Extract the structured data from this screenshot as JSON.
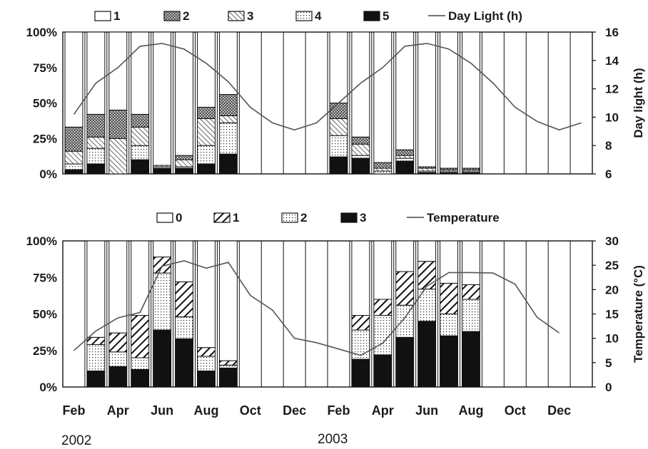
{
  "chart_data": [
    {
      "type": "bar",
      "stacked": true,
      "secondary_line": true,
      "months": [
        "Feb",
        "Mar",
        "Apr",
        "May",
        "Jun",
        "Jul",
        "Aug",
        "Sep",
        "Oct",
        "Nov",
        "Dec",
        "Jan",
        "Feb",
        "Mar",
        "Apr",
        "May",
        "Jun",
        "Jul",
        "Aug",
        "Sep",
        "Oct",
        "Nov",
        "Dec",
        "Jan"
      ],
      "ylim": [
        0,
        100
      ],
      "yticks": [
        "0%",
        "25%",
        "50%",
        "75%",
        "100%"
      ],
      "y2lim": [
        6,
        16
      ],
      "y2ticks": [
        "6",
        "8",
        "10",
        "12",
        "14",
        "16"
      ],
      "y2label": "Day light (h)",
      "legend_order": [
        "1",
        "2",
        "3",
        "4",
        "5",
        "Day Light (h)"
      ],
      "series": [
        {
          "name": "5",
          "pattern": "solid",
          "values": [
            3,
            7,
            0,
            10,
            4,
            4,
            7,
            14,
            null,
            null,
            null,
            null,
            12,
            11,
            0,
            9,
            1,
            1,
            1,
            null,
            null,
            null,
            null,
            null
          ]
        },
        {
          "name": "4",
          "pattern": "dots",
          "values": [
            4,
            11,
            0,
            10,
            1,
            1,
            13,
            22,
            null,
            null,
            null,
            null,
            15,
            2,
            2,
            2,
            1,
            1,
            1,
            null,
            null,
            null,
            null,
            null
          ]
        },
        {
          "name": "3",
          "pattern": "hatch",
          "values": [
            9,
            8,
            25,
            13,
            1,
            5,
            19,
            5,
            null,
            null,
            null,
            null,
            12,
            8,
            2,
            2,
            2,
            1,
            1,
            null,
            null,
            null,
            null,
            null
          ]
        },
        {
          "name": "2",
          "pattern": "crosshatch",
          "values": [
            17,
            16,
            20,
            9,
            0,
            3,
            8,
            15,
            null,
            null,
            null,
            null,
            11,
            5,
            4,
            4,
            1,
            1,
            1,
            null,
            null,
            null,
            null,
            null
          ]
        },
        {
          "name": "1",
          "pattern": "blank",
          "values": [
            67,
            58,
            55,
            58,
            94,
            87,
            53,
            44,
            null,
            null,
            null,
            null,
            50,
            74,
            92,
            83,
            95,
            96,
            96,
            null,
            null,
            null,
            null,
            null
          ]
        }
      ],
      "line": {
        "name": "Day Light (h)",
        "values": [
          10.2,
          12.4,
          13.5,
          15.0,
          15.2,
          14.8,
          13.8,
          12.5,
          10.7,
          9.6,
          9.1,
          9.6,
          11.0,
          12.4,
          13.5,
          15.0,
          15.2,
          14.8,
          13.8,
          12.4,
          10.7,
          9.7,
          9.1,
          9.6
        ]
      }
    },
    {
      "type": "bar",
      "stacked": true,
      "secondary_line": true,
      "months": [
        "Feb",
        "Mar",
        "Apr",
        "May",
        "Jun",
        "Jul",
        "Aug",
        "Sep",
        "Oct",
        "Nov",
        "Dec",
        "Jan",
        "Feb",
        "Mar",
        "Apr",
        "May",
        "Jun",
        "Jul",
        "Aug",
        "Sep",
        "Oct",
        "Nov",
        "Dec",
        "Jan"
      ],
      "ylim": [
        0,
        100
      ],
      "yticks": [
        "0%",
        "25%",
        "50%",
        "75%",
        "100%"
      ],
      "y2lim": [
        0,
        30
      ],
      "y2ticks": [
        "0",
        "5",
        "10",
        "15",
        "20",
        "25",
        "30"
      ],
      "y2label": "Temperature (°C)",
      "legend_order": [
        "0",
        "1",
        "2",
        "3",
        "Temperature"
      ],
      "series": [
        {
          "name": "3",
          "pattern": "solid",
          "values": [
            null,
            11,
            14,
            12,
            39,
            33,
            11,
            13,
            null,
            null,
            null,
            null,
            null,
            19,
            22,
            34,
            45,
            35,
            38,
            null,
            null,
            null,
            null,
            null
          ]
        },
        {
          "name": "2",
          "pattern": "dots",
          "values": [
            null,
            18,
            10,
            8,
            39,
            15,
            10,
            2,
            null,
            null,
            null,
            null,
            null,
            20,
            27,
            22,
            22,
            15,
            22,
            null,
            null,
            null,
            null,
            null
          ]
        },
        {
          "name": "1",
          "pattern": "diag",
          "values": [
            null,
            5,
            13,
            29,
            11,
            24,
            6,
            3,
            null,
            null,
            null,
            null,
            null,
            10,
            11,
            23,
            19,
            21,
            10,
            null,
            null,
            null,
            null,
            null
          ]
        },
        {
          "name": "0",
          "pattern": "blank",
          "values": [
            null,
            66,
            63,
            51,
            11,
            28,
            73,
            82,
            null,
            null,
            null,
            null,
            null,
            51,
            40,
            21,
            14,
            29,
            30,
            null,
            null,
            null,
            null,
            null
          ]
        }
      ],
      "line": {
        "name": "Temperature",
        "values": [
          7.5,
          11.5,
          14.2,
          15.3,
          24.8,
          25.9,
          24.4,
          25.6,
          18.8,
          15.8,
          10.0,
          9.1,
          7.8,
          6.5,
          9.0,
          14.2,
          20.7,
          23.5,
          23.5,
          23.4,
          21.1,
          14.3,
          11.1,
          null
        ]
      }
    }
  ],
  "x_labels": [
    "Feb",
    "Apr",
    "Jun",
    "Aug",
    "Oct",
    "Dec",
    "Feb",
    "Apr",
    "Jun",
    "Aug",
    "Oct",
    "Dec"
  ],
  "years": [
    "2002",
    "2003"
  ],
  "legend_top": [
    "1",
    "2",
    "3",
    "4",
    "5",
    "Day Light (h)"
  ],
  "legend_bottom": [
    "0",
    "1",
    "2",
    "3",
    "Temperature"
  ],
  "top_y2label": "Day light (h)",
  "bottom_y2label": "Temperature (°C)"
}
